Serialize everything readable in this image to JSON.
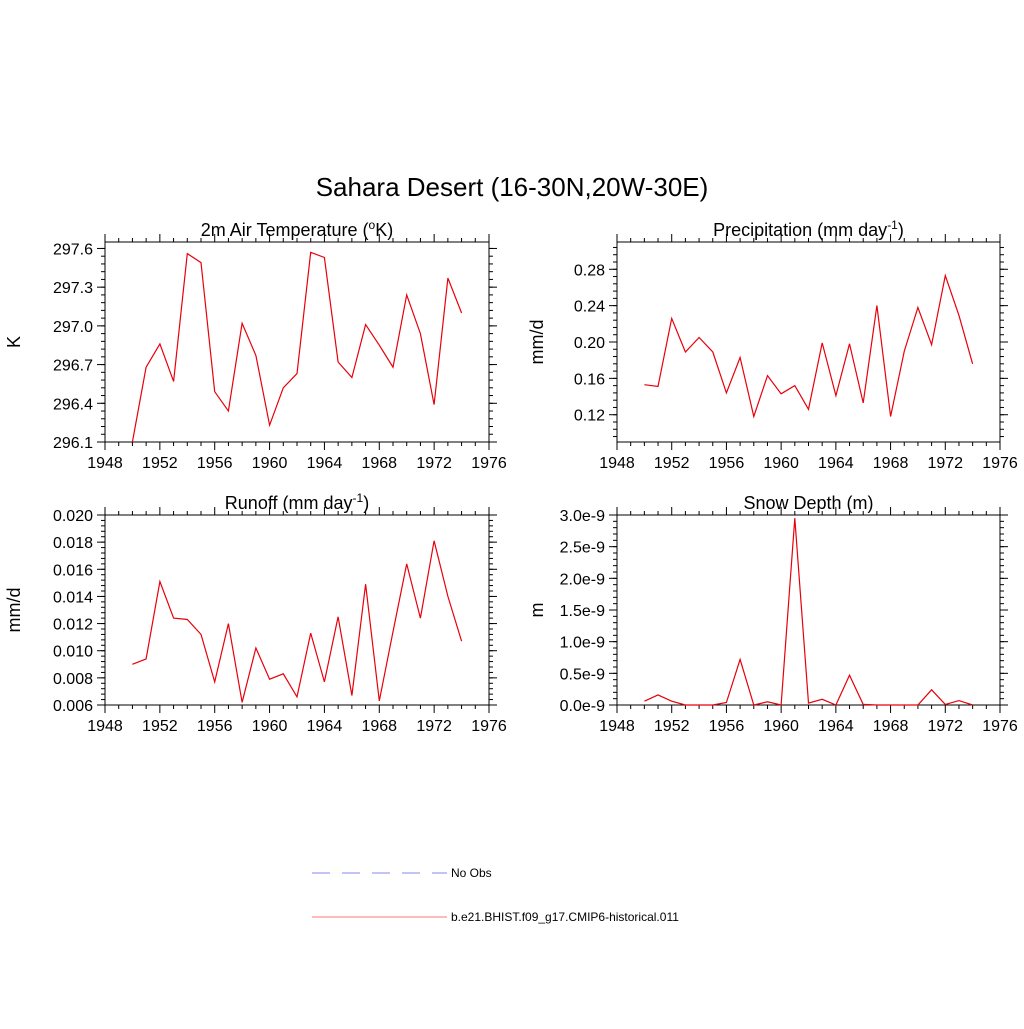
{
  "figure": {
    "title": "Sahara Desert (16-30N,20W-30E)"
  },
  "colors": {
    "model": "#e8000b",
    "obs": "#9f9ff5",
    "axis": "#000000",
    "background": "#ffffff"
  },
  "legend": [
    {
      "label": "No Obs",
      "style": "dashed",
      "color": "#9f9ff5"
    },
    {
      "label": "b.e21.BHIST.f09_g17.CMIP6-historical.011",
      "style": "solid",
      "color": "#ff9090"
    }
  ],
  "chart_data": [
    {
      "type": "line",
      "title_main": "2m Air Temperature (",
      "title_sup1": "o",
      "title_mid": "K)",
      "title_sup2": "",
      "title_end": "",
      "ylabel": "K",
      "xlim": [
        1948,
        1976
      ],
      "ylim": [
        296.1,
        297.65
      ],
      "x_ticks": [
        1948,
        1952,
        1956,
        1960,
        1964,
        1968,
        1972,
        1976
      ],
      "y_ticks": [
        296.1,
        296.4,
        296.7,
        297.0,
        297.3,
        297.6
      ],
      "y_tick_labels": [
        "296.1",
        "296.4",
        "296.7",
        "297.0",
        "297.3",
        "297.6"
      ],
      "series": [
        {
          "x": [
            1950,
            1951,
            1952,
            1953,
            1954,
            1955,
            1956,
            1957,
            1958,
            1959,
            1960,
            1961,
            1962,
            1963,
            1964,
            1965,
            1966,
            1967,
            1968,
            1969,
            1970,
            1971,
            1972,
            1973,
            1974
          ],
          "values": [
            296.1,
            296.68,
            296.86,
            296.57,
            297.56,
            297.49,
            296.49,
            296.34,
            297.02,
            296.77,
            296.23,
            296.52,
            296.63,
            297.57,
            297.53,
            296.72,
            296.6,
            297.01,
            296.85,
            296.68,
            297.24,
            296.94,
            296.39,
            297.37,
            297.1
          ]
        }
      ]
    },
    {
      "type": "line",
      "title_main": "Precipitation (mm day",
      "title_sup1": "-1",
      "title_mid": ")",
      "title_sup2": "",
      "title_end": "",
      "ylabel": "mm/d",
      "xlim": [
        1948,
        1976
      ],
      "ylim": [
        0.09,
        0.31
      ],
      "x_ticks": [
        1948,
        1952,
        1956,
        1960,
        1964,
        1968,
        1972,
        1976
      ],
      "y_ticks": [
        0.12,
        0.16,
        0.2,
        0.24,
        0.28
      ],
      "y_tick_labels": [
        "0.12",
        "0.16",
        "0.20",
        "0.24",
        "0.28"
      ],
      "series": [
        {
          "x": [
            1950,
            1951,
            1952,
            1953,
            1954,
            1955,
            1956,
            1957,
            1958,
            1959,
            1960,
            1961,
            1962,
            1963,
            1964,
            1965,
            1966,
            1967,
            1968,
            1969,
            1970,
            1971,
            1972,
            1973,
            1974
          ],
          "values": [
            0.153,
            0.151,
            0.226,
            0.189,
            0.205,
            0.189,
            0.144,
            0.183,
            0.118,
            0.163,
            0.143,
            0.152,
            0.126,
            0.199,
            0.141,
            0.198,
            0.133,
            0.24,
            0.118,
            0.19,
            0.238,
            0.197,
            0.273,
            0.229,
            0.176
          ]
        }
      ]
    },
    {
      "type": "line",
      "title_main": "Runoff (mm day",
      "title_sup1": "-1",
      "title_mid": ")",
      "title_sup2": "",
      "title_end": "",
      "ylabel": "mm/d",
      "xlim": [
        1948,
        1976
      ],
      "ylim": [
        0.006,
        0.02
      ],
      "x_ticks": [
        1948,
        1952,
        1956,
        1960,
        1964,
        1968,
        1972,
        1976
      ],
      "y_ticks": [
        0.006,
        0.008,
        0.01,
        0.012,
        0.014,
        0.016,
        0.018,
        0.02
      ],
      "y_tick_labels": [
        "0.006",
        "0.008",
        "0.010",
        "0.012",
        "0.014",
        "0.016",
        "0.018",
        "0.020"
      ],
      "series": [
        {
          "x": [
            1950,
            1951,
            1952,
            1953,
            1954,
            1955,
            1956,
            1957,
            1958,
            1959,
            1960,
            1961,
            1962,
            1963,
            1964,
            1965,
            1966,
            1967,
            1968,
            1969,
            1970,
            1971,
            1972,
            1973,
            1974
          ],
          "values": [
            0.009,
            0.0094,
            0.0151,
            0.0124,
            0.0123,
            0.0112,
            0.0077,
            0.012,
            0.0062,
            0.0102,
            0.0079,
            0.0083,
            0.0066,
            0.0113,
            0.0077,
            0.0125,
            0.0067,
            0.0149,
            0.0063,
            0.0114,
            0.0164,
            0.0124,
            0.0181,
            0.014,
            0.0107
          ]
        }
      ]
    },
    {
      "type": "line",
      "title_main": "Snow Depth (m)",
      "title_sup1": "",
      "title_mid": "",
      "title_sup2": "",
      "title_end": "",
      "ylabel": "m",
      "xlim": [
        1948,
        1976
      ],
      "ylim": [
        0,
        3e-09
      ],
      "x_ticks": [
        1948,
        1952,
        1956,
        1960,
        1964,
        1968,
        1972,
        1976
      ],
      "y_ticks": [
        0,
        5e-10,
        1e-09,
        1.5e-09,
        2e-09,
        2.5e-09,
        3e-09
      ],
      "y_tick_labels": [
        "0.0e-9",
        "0.5e-9",
        "1.0e-9",
        "1.5e-9",
        "2.0e-9",
        "2.5e-9",
        "3.0e-9"
      ],
      "series": [
        {
          "x": [
            1950,
            1951,
            1952,
            1953,
            1954,
            1955,
            1956,
            1957,
            1958,
            1959,
            1960,
            1961,
            1962,
            1963,
            1964,
            1965,
            1966,
            1967,
            1968,
            1969,
            1970,
            1971,
            1972,
            1973,
            1974
          ],
          "values": [
            6e-11,
            1.6e-10,
            6e-11,
            0.0,
            0.0,
            0.0,
            4e-11,
            7.2e-10,
            0.0,
            5e-11,
            0.0,
            2.95e-09,
            3e-11,
            9e-11,
            0.0,
            4.7e-10,
            1e-11,
            0.0,
            0.0,
            0.0,
            0.0,
            2.4e-10,
            1e-11,
            7e-11,
            0.0
          ]
        }
      ]
    }
  ]
}
